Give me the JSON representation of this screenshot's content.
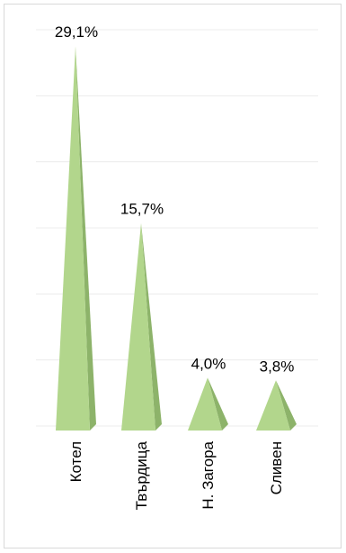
{
  "chart_data": {
    "type": "bar",
    "bar_shape": "pyramid",
    "categories": [
      "Котел",
      "Твърдица",
      "Н. Загора",
      "Сливен"
    ],
    "values": [
      29.1,
      15.7,
      4.0,
      3.8
    ],
    "data_labels": [
      "29,1%",
      "15,7%",
      "4,0%",
      "3,8%"
    ],
    "title": "",
    "xlabel": "",
    "ylabel": "",
    "ylim": [
      0,
      30
    ],
    "grid": true,
    "legend": "none",
    "colors": {
      "front_face": "#b2d68c",
      "side_face": "#8db36a",
      "gridline": "#ececec",
      "frame": "#d9d9d9"
    }
  }
}
